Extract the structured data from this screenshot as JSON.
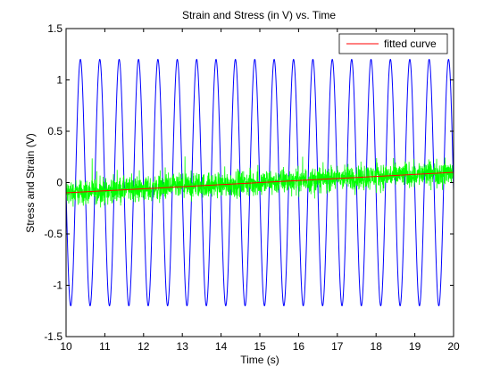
{
  "chart_data": {
    "type": "line",
    "title": "Strain and Stress (in V) vs. Time",
    "xlabel": "Time (s)",
    "ylabel": "Stress and Strain (V)",
    "xlim": [
      10,
      20
    ],
    "ylim": [
      -1.5,
      1.5
    ],
    "xticks": [
      "10",
      "11",
      "12",
      "13",
      "14",
      "15",
      "16",
      "17",
      "18",
      "19",
      "20"
    ],
    "yticks": [
      "-1.5",
      "-1",
      "-0.5",
      "0",
      "0.5",
      "1",
      "1.5"
    ],
    "grid": false,
    "legend_position": "top-right",
    "series": [
      {
        "kind": "sine",
        "color": "#0000ff",
        "amplitude": 1.2,
        "frequency_hz": 2,
        "peak_times": [
          10.37,
          20.0
        ]
      },
      {
        "kind": "noise",
        "color": "#00ff00",
        "band_half_width": 0.18,
        "spike_max": 0.35,
        "trend_start": -0.1,
        "trend_end": 0.1
      },
      {
        "name": "fitted curve",
        "kind": "linear",
        "color": "#ff0000",
        "x": [
          10,
          20
        ],
        "y": [
          -0.1,
          0.1
        ]
      }
    ]
  }
}
